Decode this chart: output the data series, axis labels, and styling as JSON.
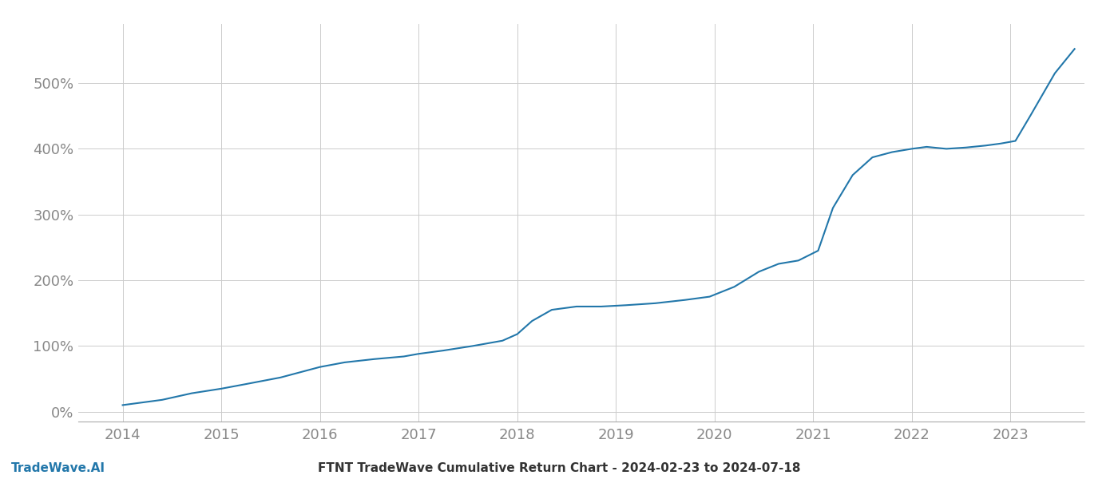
{
  "title": "FTNT TradeWave Cumulative Return Chart - 2024-02-23 to 2024-07-18",
  "watermark": "TradeWave.AI",
  "line_color": "#2277aa",
  "background_color": "#ffffff",
  "grid_color": "#cccccc",
  "x_years": [
    2014,
    2015,
    2016,
    2017,
    2018,
    2019,
    2020,
    2021,
    2022,
    2023
  ],
  "y_ticks": [
    0,
    100,
    200,
    300,
    400,
    500
  ],
  "ylim": [
    -15,
    590
  ],
  "xlim": [
    2013.55,
    2023.75
  ],
  "data_x": [
    2014.0,
    2014.15,
    2014.4,
    2014.7,
    2015.0,
    2015.25,
    2015.6,
    2016.0,
    2016.25,
    2016.55,
    2016.85,
    2017.0,
    2017.25,
    2017.55,
    2017.85,
    2018.0,
    2018.15,
    2018.35,
    2018.6,
    2018.85,
    2019.1,
    2019.4,
    2019.7,
    2019.95,
    2020.2,
    2020.45,
    2020.65,
    2020.85,
    2021.05,
    2021.2,
    2021.4,
    2021.6,
    2021.8,
    2022.0,
    2022.15,
    2022.35,
    2022.55,
    2022.75,
    2022.9,
    2023.05,
    2023.2,
    2023.45,
    2023.65
  ],
  "data_y": [
    10,
    13,
    18,
    28,
    35,
    42,
    52,
    68,
    75,
    80,
    84,
    88,
    93,
    100,
    108,
    118,
    138,
    155,
    160,
    160,
    162,
    165,
    170,
    175,
    190,
    213,
    225,
    230,
    245,
    310,
    360,
    387,
    395,
    400,
    403,
    400,
    402,
    405,
    408,
    412,
    450,
    515,
    552
  ],
  "tick_color": "#888888",
  "tick_fontsize": 13,
  "spine_bottom_color": "#aaaaaa",
  "title_fontsize": 11,
  "title_color": "#333333",
  "watermark_color": "#2277aa",
  "watermark_fontsize": 11
}
